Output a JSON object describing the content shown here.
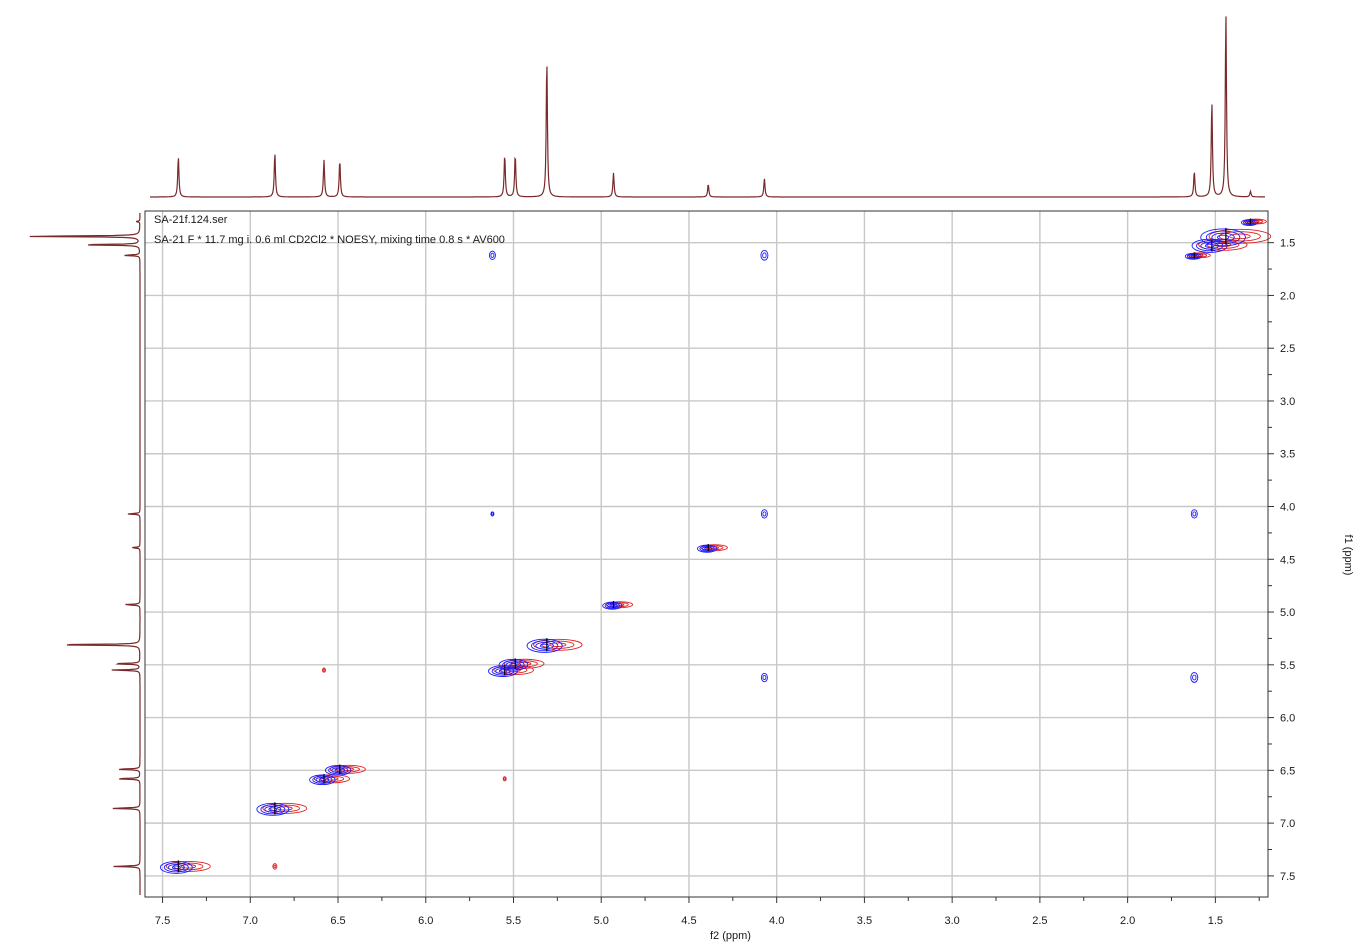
{
  "chart_data": {
    "type": "heatmap",
    "title_lines": [
      "SA-21f.124.ser",
      "SA-21 F * 11.7 mg i. 0.6 ml CD2Cl2 * NOESY, mixing time 0.8 s  * AV600"
    ],
    "xlabel": "f2 (ppm)",
    "ylabel": "f1 (ppm)",
    "xlim": [
      7.6,
      1.2
    ],
    "ylim": [
      1.2,
      7.7
    ],
    "x_ticks": [
      "7.5",
      "7.0",
      "6.5",
      "6.0",
      "5.5",
      "5.0",
      "4.5",
      "4.0",
      "3.5",
      "3.0",
      "2.5",
      "2.0",
      "1.5"
    ],
    "y_ticks": [
      "1.5",
      "2.0",
      "2.5",
      "3.0",
      "3.5",
      "4.0",
      "4.5",
      "5.0",
      "5.5",
      "6.0",
      "6.5",
      "7.0",
      "7.5"
    ],
    "grid": true,
    "colors": {
      "positive": "#1a1aff",
      "negative": "#e02020",
      "projection": "#7a2a2a",
      "grid": "#c8c8c8"
    },
    "projection_peaks": [
      {
        "ppm": 7.41,
        "height": 0.22
      },
      {
        "ppm": 6.86,
        "height": 0.24
      },
      {
        "ppm": 6.58,
        "height": 0.2
      },
      {
        "ppm": 6.49,
        "height": 0.2
      },
      {
        "ppm": 5.55,
        "height": 0.23
      },
      {
        "ppm": 5.49,
        "height": 0.23
      },
      {
        "ppm": 5.31,
        "height": 0.75
      },
      {
        "ppm": 4.93,
        "height": 0.13
      },
      {
        "ppm": 4.39,
        "height": 0.07
      },
      {
        "ppm": 4.07,
        "height": 0.1
      },
      {
        "ppm": 1.62,
        "height": 0.14
      },
      {
        "ppm": 1.52,
        "height": 0.52
      },
      {
        "ppm": 1.44,
        "height": 1.0
      },
      {
        "ppm": 1.3,
        "height": 0.03
      }
    ],
    "diagonal_peaks": [
      {
        "f2": 7.41,
        "f1": 7.41,
        "size": 1.0
      },
      {
        "f2": 6.86,
        "f1": 6.86,
        "size": 1.0
      },
      {
        "f2": 6.58,
        "f1": 6.58,
        "size": 0.8
      },
      {
        "f2": 6.49,
        "f1": 6.49,
        "size": 0.8
      },
      {
        "f2": 5.55,
        "f1": 5.55,
        "size": 0.9
      },
      {
        "f2": 5.49,
        "f1": 5.49,
        "size": 0.9
      },
      {
        "f2": 5.31,
        "f1": 5.31,
        "size": 1.1
      },
      {
        "f2": 4.93,
        "f1": 4.93,
        "size": 0.6
      },
      {
        "f2": 4.39,
        "f1": 4.39,
        "size": 0.6
      },
      {
        "f2": 1.62,
        "f1": 1.62,
        "size": 0.5
      },
      {
        "f2": 1.52,
        "f1": 1.52,
        "size": 1.1
      },
      {
        "f2": 1.44,
        "f1": 1.44,
        "size": 1.4
      },
      {
        "f2": 1.3,
        "f1": 1.3,
        "size": 0.5
      }
    ],
    "cross_peaks": [
      {
        "f2": 5.62,
        "f1": 1.62,
        "color": "positive",
        "size": 0.3
      },
      {
        "f2": 4.07,
        "f1": 1.62,
        "color": "positive",
        "size": 0.35
      },
      {
        "f2": 5.62,
        "f1": 4.07,
        "color": "positive",
        "size": 0.15
      },
      {
        "f2": 4.07,
        "f1": 4.07,
        "color": "positive",
        "size": 0.3
      },
      {
        "f2": 1.62,
        "f1": 4.07,
        "color": "positive",
        "size": 0.3
      },
      {
        "f2": 4.07,
        "f1": 5.62,
        "color": "positive",
        "size": 0.3
      },
      {
        "f2": 1.62,
        "f1": 5.62,
        "color": "positive",
        "size": 0.35
      },
      {
        "f2": 6.58,
        "f1": 5.55,
        "color": "negative",
        "size": 0.15
      },
      {
        "f2": 5.55,
        "f1": 6.58,
        "color": "negative",
        "size": 0.15
      },
      {
        "f2": 6.86,
        "f1": 7.41,
        "color": "negative",
        "size": 0.2
      }
    ]
  }
}
